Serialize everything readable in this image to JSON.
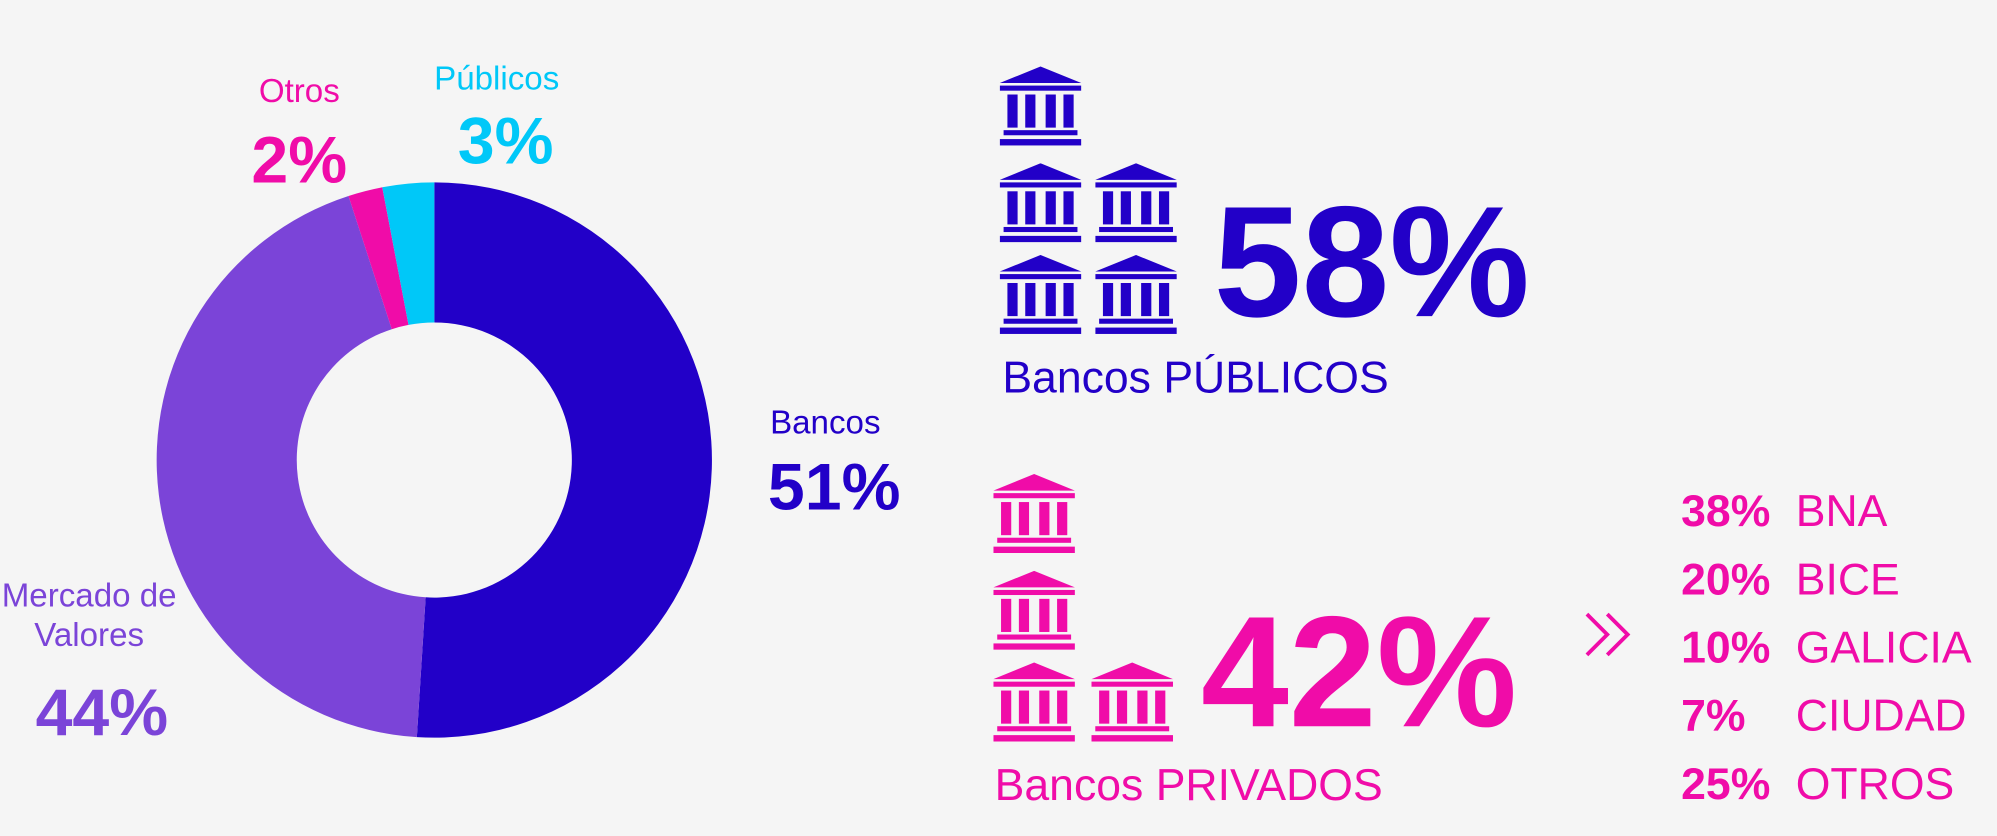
{
  "chart_data": {
    "type": "pie",
    "categories": [
      "Bancos",
      "Mercado de Valores",
      "Otros",
      "Públicos"
    ],
    "values": [
      51,
      44,
      2,
      3
    ],
    "value_labels": [
      "51%",
      "44%",
      "2%",
      "3%"
    ],
    "colors": [
      "#2200c8",
      "#7b44d8",
      "#f00ca8",
      "#00c8f8"
    ],
    "donut": true
  },
  "panels": {
    "public": {
      "share": "58%",
      "label": "Bancos PÚBLICOS"
    },
    "private": {
      "share": "42%",
      "label": "Bancos PRIVADOS",
      "breakdown": [
        [
          "38%",
          "BNA"
        ],
        [
          "20%",
          "BICE"
        ],
        [
          "10%",
          "GALICIA"
        ],
        [
          "7%",
          "CIUDAD"
        ],
        [
          "25%",
          "OTROS"
        ]
      ]
    }
  }
}
